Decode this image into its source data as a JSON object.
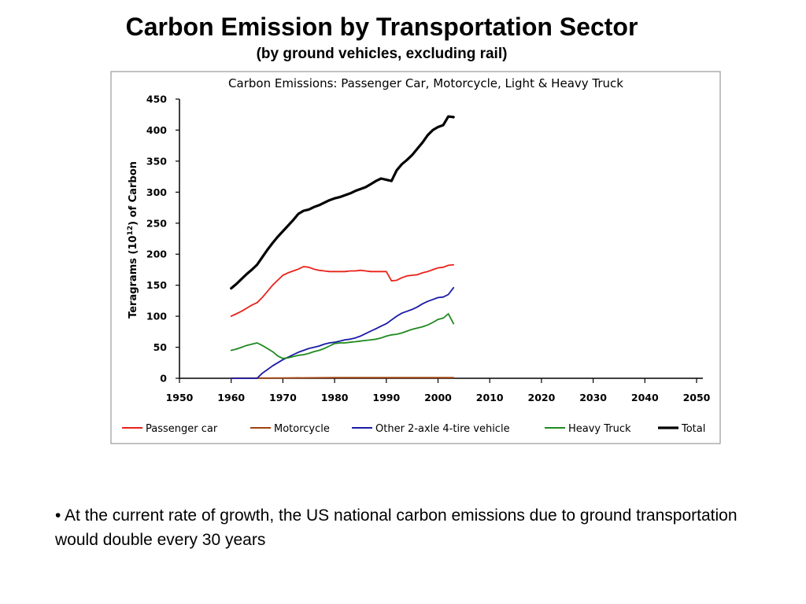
{
  "slide": {
    "title": "Carbon Emission by Transportation Sector",
    "subtitle": "(by ground vehicles, excluding rail)",
    "bullet": "• At the current rate of growth, the US national carbon emissions due to ground transportation would double every 30 years"
  },
  "chart_data": {
    "type": "line",
    "title": "Carbon Emissions: Passenger Car, Motorcycle, Light & Heavy Truck",
    "xlabel": "",
    "ylabel_main": "Teragrams (10",
    "ylabel_sup": "12",
    "ylabel_tail": ") of Carbon",
    "xlim": [
      1950,
      2050
    ],
    "ylim": [
      0,
      450
    ],
    "xticks": [
      1950,
      1960,
      1970,
      1980,
      1990,
      2000,
      2010,
      2020,
      2030,
      2040,
      2050
    ],
    "yticks": [
      0,
      50,
      100,
      150,
      200,
      250,
      300,
      350,
      400,
      450
    ],
    "grid": false,
    "legend_position": "bottom",
    "series": [
      {
        "name": "Passenger car",
        "color": "#e8221a",
        "x": [
          1960,
          1961,
          1962,
          1963,
          1964,
          1965,
          1966,
          1967,
          1968,
          1969,
          1970,
          1971,
          1972,
          1973,
          1974,
          1975,
          1976,
          1977,
          1978,
          1979,
          1980,
          1981,
          1982,
          1983,
          1984,
          1985,
          1986,
          1987,
          1988,
          1989,
          1990,
          1991,
          1992,
          1993,
          1994,
          1995,
          1996,
          1997,
          1998,
          1999,
          2000,
          2001,
          2002,
          2003
        ],
        "y": [
          100,
          104,
          108,
          113,
          118,
          122,
          130,
          140,
          150,
          158,
          166,
          170,
          173,
          176,
          180,
          179,
          176,
          174,
          173,
          172,
          172,
          172,
          172,
          173,
          173,
          174,
          173,
          172,
          172,
          172,
          172,
          157,
          158,
          162,
          165,
          166,
          167,
          170,
          172,
          175,
          178,
          179,
          182,
          183
        ]
      },
      {
        "name": "Motorcycle",
        "color": "#a0420e",
        "x": [
          1960,
          1970,
          1980,
          1990,
          2000,
          2003
        ],
        "y": [
          0.3,
          0.5,
          1,
          1,
          1,
          1
        ]
      },
      {
        "name": "Other 2-axle 4-tire vehicle",
        "color": "#1a1aa6",
        "x": [
          1960,
          1961,
          1962,
          1963,
          1964,
          1965,
          1966,
          1967,
          1968,
          1969,
          1970,
          1971,
          1972,
          1973,
          1974,
          1975,
          1976,
          1977,
          1978,
          1979,
          1980,
          1981,
          1982,
          1983,
          1984,
          1985,
          1986,
          1987,
          1988,
          1989,
          1990,
          1991,
          1992,
          1993,
          1994,
          1995,
          1996,
          1997,
          1998,
          1999,
          2000,
          2001,
          2002,
          2003
        ],
        "y": [
          0,
          0,
          0,
          0,
          0,
          0,
          8,
          14,
          20,
          25,
          30,
          34,
          38,
          42,
          45,
          48,
          50,
          52,
          55,
          57,
          58,
          60,
          62,
          63,
          65,
          68,
          72,
          76,
          80,
          84,
          88,
          94,
          100,
          105,
          108,
          111,
          115,
          120,
          124,
          127,
          130,
          131,
          135,
          146
        ]
      },
      {
        "name": "Heavy Truck",
        "color": "#1f8a1f",
        "x": [
          1960,
          1961,
          1962,
          1963,
          1964,
          1965,
          1966,
          1967,
          1968,
          1969,
          1970,
          1971,
          1972,
          1973,
          1974,
          1975,
          1976,
          1977,
          1978,
          1979,
          1980,
          1981,
          1982,
          1983,
          1984,
          1985,
          1986,
          1987,
          1988,
          1989,
          1990,
          1991,
          1992,
          1993,
          1994,
          1995,
          1996,
          1997,
          1998,
          1999,
          2000,
          2001,
          2002,
          2003
        ],
        "y": [
          45,
          47,
          50,
          53,
          55,
          57,
          53,
          48,
          43,
          36,
          32,
          33,
          35,
          37,
          38,
          40,
          43,
          45,
          48,
          52,
          56,
          57,
          57,
          58,
          59,
          60,
          61,
          62,
          63,
          65,
          68,
          70,
          71,
          73,
          76,
          79,
          81,
          83,
          86,
          90,
          95,
          97,
          104,
          88
        ]
      },
      {
        "name": "Total",
        "color": "#000000",
        "x": [
          1960,
          1961,
          1962,
          1963,
          1964,
          1965,
          1966,
          1967,
          1968,
          1969,
          1970,
          1971,
          1972,
          1973,
          1974,
          1975,
          1976,
          1977,
          1978,
          1979,
          1980,
          1981,
          1982,
          1983,
          1984,
          1985,
          1986,
          1987,
          1988,
          1989,
          1990,
          1991,
          1992,
          1993,
          1994,
          1995,
          1996,
          1997,
          1998,
          1999,
          2000,
          2001,
          2002,
          2003
        ],
        "y": [
          145,
          152,
          160,
          168,
          175,
          183,
          195,
          207,
          218,
          228,
          237,
          246,
          255,
          265,
          270,
          272,
          276,
          279,
          283,
          287,
          290,
          292,
          295,
          298,
          302,
          305,
          308,
          313,
          318,
          322,
          320,
          318,
          335,
          345,
          352,
          360,
          370,
          380,
          392,
          400,
          405,
          408,
          422,
          421
        ]
      }
    ]
  }
}
